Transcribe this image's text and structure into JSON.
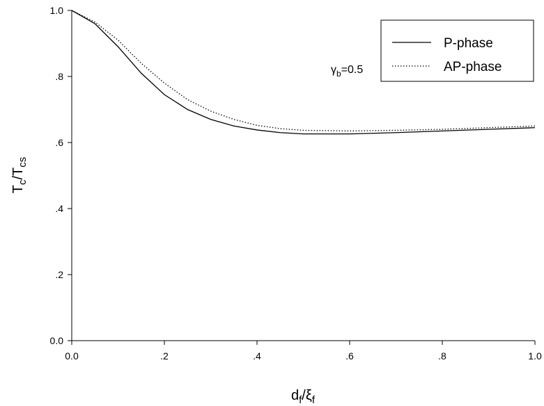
{
  "chart_data": {
    "type": "line",
    "xlabel": [
      "d",
      "f",
      "/ξ",
      "f"
    ],
    "ylabel": [
      "T",
      "c",
      "/T",
      "cs"
    ],
    "annotation": [
      "γ",
      "b",
      "=0.5"
    ],
    "x": [
      0,
      0.05,
      0.1,
      0.15,
      0.2,
      0.25,
      0.3,
      0.35,
      0.4,
      0.45,
      0.5,
      0.6,
      0.7,
      0.8,
      0.9,
      1.0
    ],
    "series": [
      {
        "name": "P-phase",
        "color": "#000000",
        "dash": "solid",
        "values": [
          1.0,
          0.96,
          0.89,
          0.81,
          0.745,
          0.7,
          0.67,
          0.65,
          0.638,
          0.63,
          0.626,
          0.626,
          0.63,
          0.635,
          0.64,
          0.645
        ]
      },
      {
        "name": "AP-phase",
        "color": "#000000",
        "dash": "dotted",
        "values": [
          1.0,
          0.965,
          0.91,
          0.84,
          0.78,
          0.73,
          0.695,
          0.67,
          0.652,
          0.642,
          0.637,
          0.635,
          0.637,
          0.64,
          0.645,
          0.65
        ]
      }
    ],
    "xlim": [
      0,
      1
    ],
    "ylim": [
      0,
      1
    ],
    "xticks": [
      {
        "value": 0,
        "label": "0.0"
      },
      {
        "value": 0.2,
        "label": ".2"
      },
      {
        "value": 0.4,
        "label": ".4"
      },
      {
        "value": 0.6,
        "label": ".6"
      },
      {
        "value": 0.8,
        "label": ".8"
      },
      {
        "value": 1,
        "label": "1.0"
      }
    ],
    "yticks": [
      {
        "value": 0,
        "label": "0.0"
      },
      {
        "value": 0.2,
        "label": ".2"
      },
      {
        "value": 0.4,
        "label": ".4"
      },
      {
        "value": 0.6,
        "label": ".6"
      },
      {
        "value": 0.8,
        "label": ".8"
      },
      {
        "value": 1,
        "label": "1.0"
      }
    ],
    "legend": "upper right",
    "grid": false
  }
}
